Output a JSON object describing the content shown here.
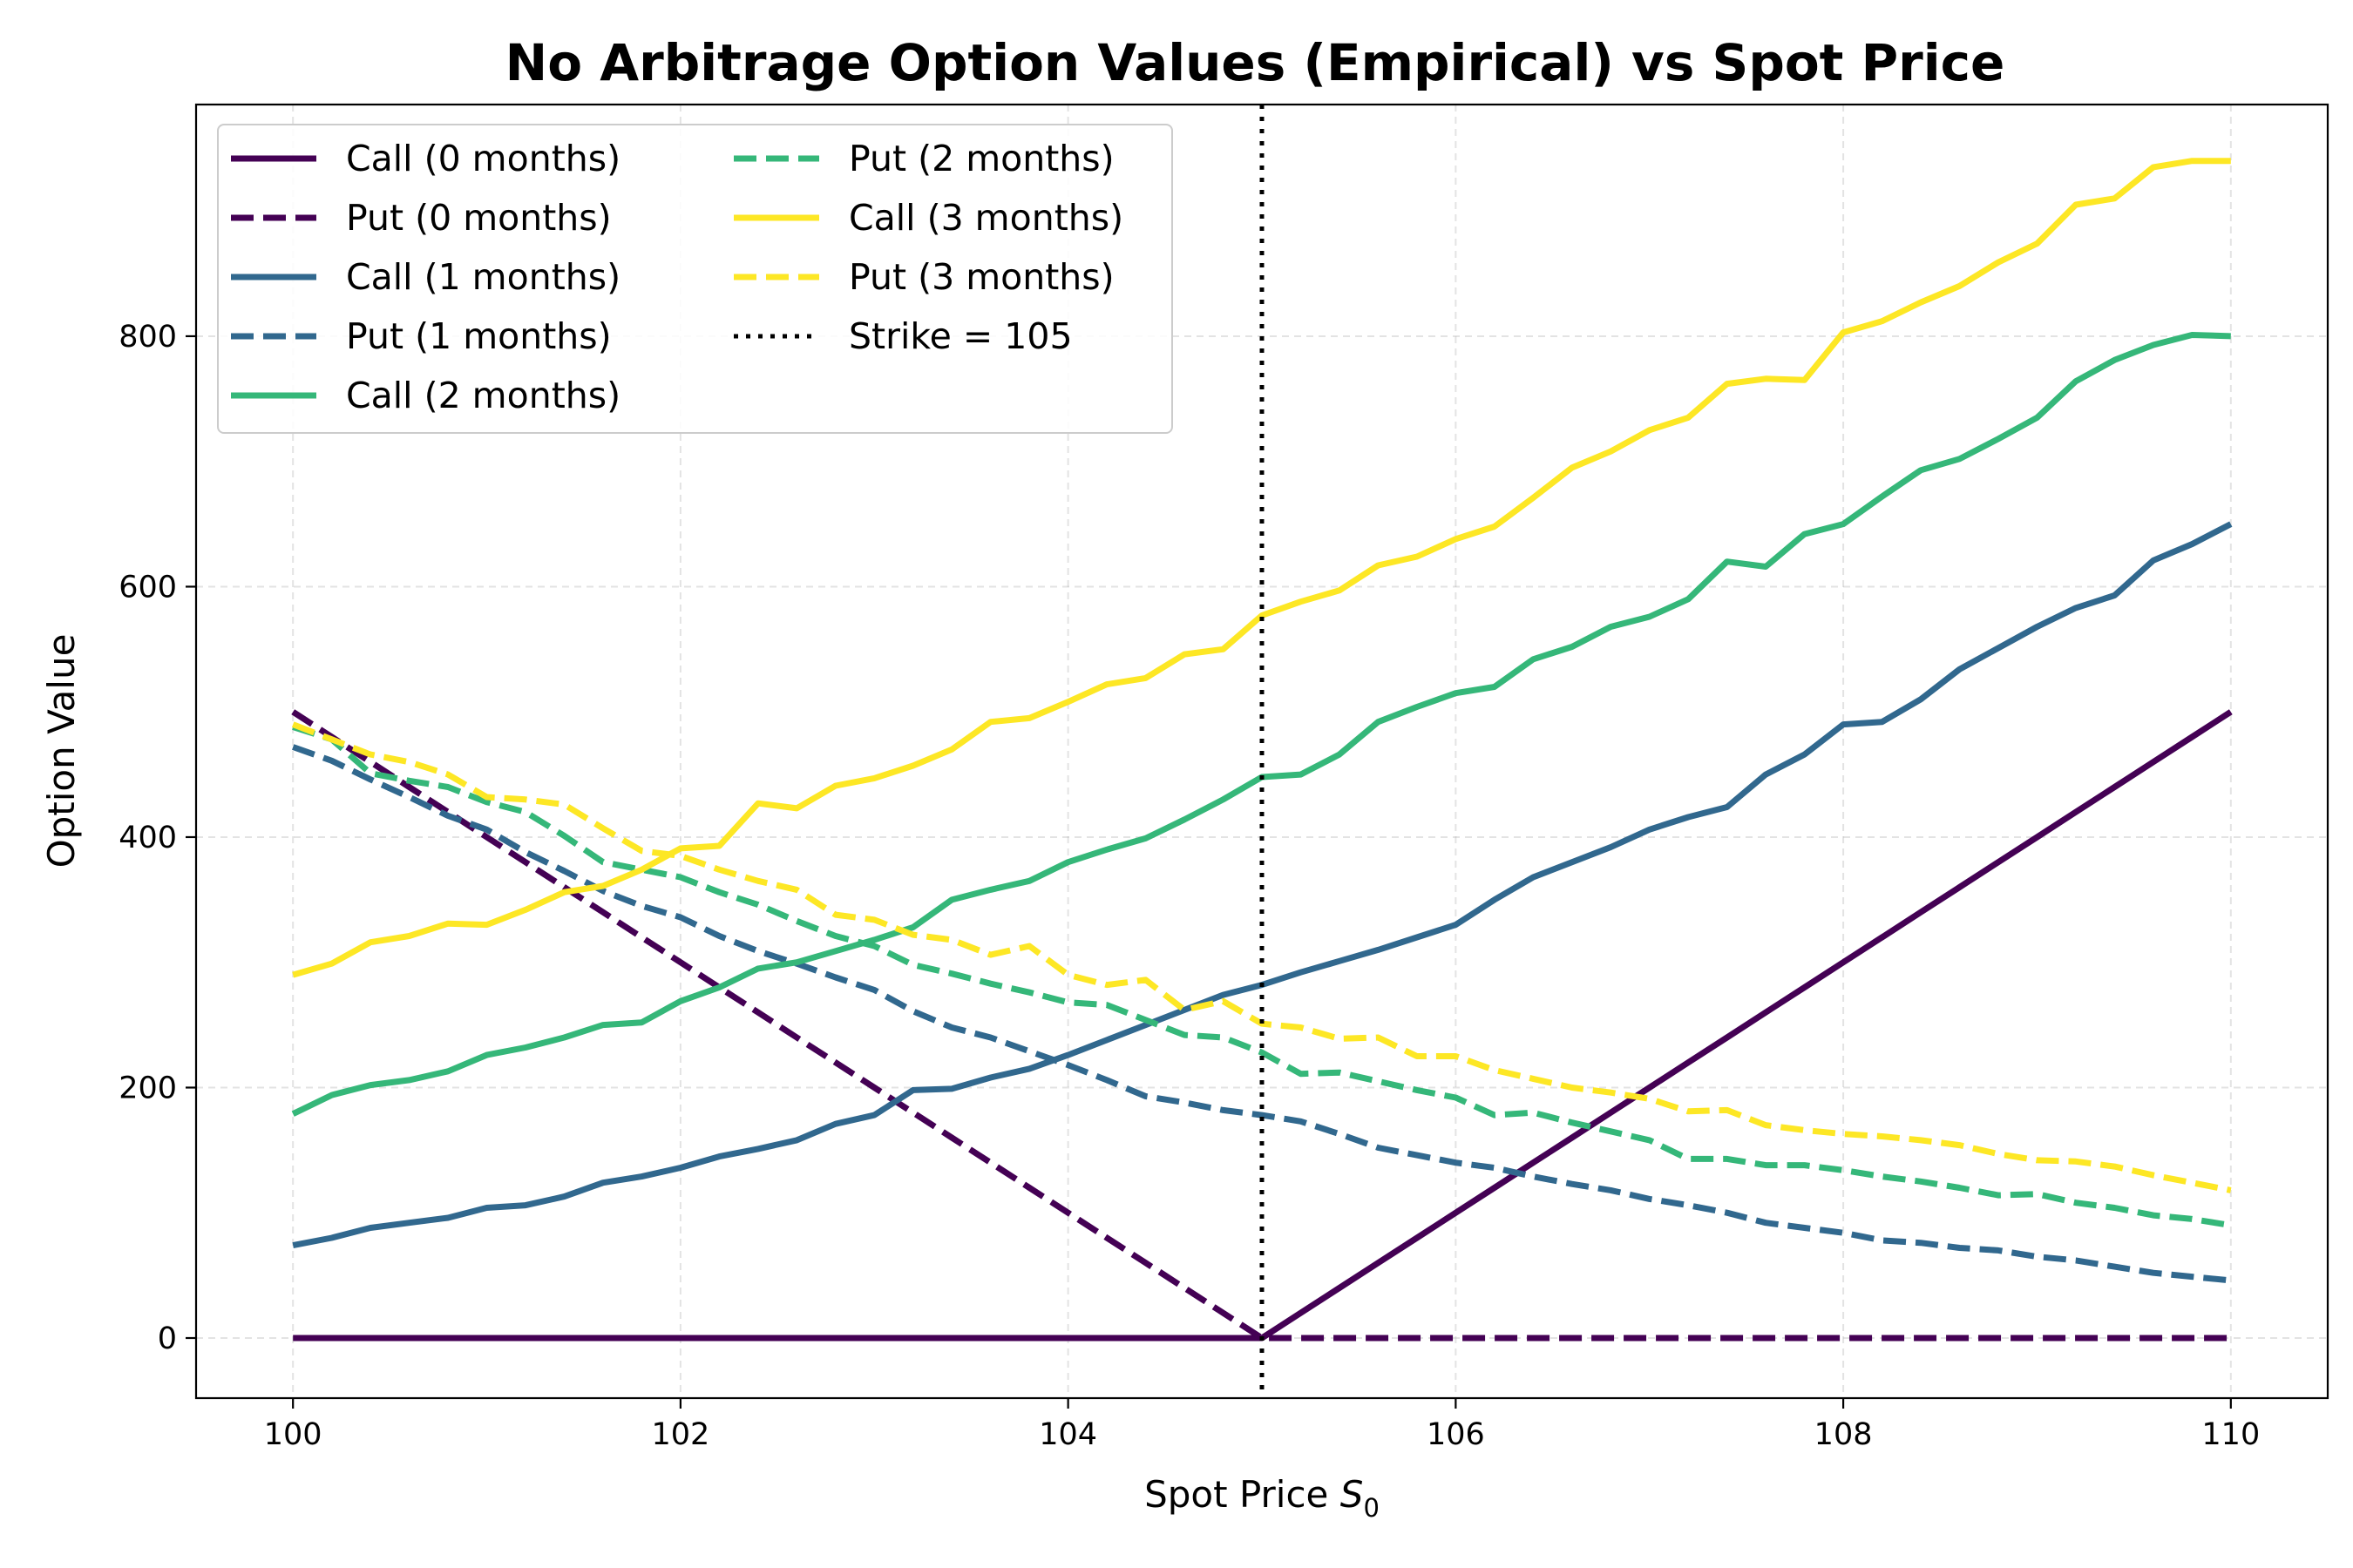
{
  "chart_data": {
    "type": "line",
    "title": "No Arbitrage Option Values (Empirical) vs Spot Price",
    "xlabel": "Spot Price",
    "xlabel_symbol": "S",
    "xlabel_subscript": "0",
    "ylabel": "Option Value",
    "xlim": [
      99.5,
      110.5
    ],
    "ylim": [
      -48,
      985
    ],
    "xticks": [
      100,
      102,
      104,
      106,
      108,
      110
    ],
    "yticks": [
      0,
      200,
      400,
      600,
      800
    ],
    "grid": true,
    "legend_position": "upper left",
    "strike": {
      "value": 105,
      "label": "Strike = 105",
      "color": "#000000"
    },
    "x": [
      100.0,
      100.2,
      100.4,
      100.6,
      100.8,
      101.0,
      101.2,
      101.4,
      101.6,
      101.8,
      102.0,
      102.2,
      102.4,
      102.6,
      102.8,
      103.0,
      103.2,
      103.4,
      103.6,
      103.8,
      104.0,
      104.2,
      104.4,
      104.6,
      104.8,
      105.0,
      105.2,
      105.4,
      105.6,
      105.8,
      106.0,
      106.2,
      106.4,
      106.6,
      106.8,
      107.0,
      107.2,
      107.4,
      107.6,
      107.8,
      108.0,
      108.2,
      108.4,
      108.6,
      108.8,
      109.0,
      109.2,
      109.4,
      109.6,
      109.8,
      110.0
    ],
    "series": [
      {
        "name": "Call (0 months)",
        "color": "#440154",
        "dash": "solid",
        "values": [
          0,
          0,
          0,
          0,
          0,
          0,
          0,
          0,
          0,
          0,
          0,
          0,
          0,
          0,
          0,
          0,
          0,
          0,
          0,
          0,
          0,
          0,
          0,
          0,
          0,
          0,
          20,
          40,
          60,
          80,
          100,
          120,
          140,
          160,
          180,
          200,
          220,
          240,
          260,
          280,
          300,
          320,
          340,
          360,
          380,
          400,
          420,
          440,
          460,
          480,
          500
        ]
      },
      {
        "name": "Put (0 months)",
        "color": "#440154",
        "dash": "dashed",
        "values": [
          500,
          480,
          460,
          440,
          420,
          400,
          380,
          360,
          340,
          320,
          300,
          280,
          260,
          240,
          220,
          200,
          180,
          160,
          140,
          120,
          100,
          80,
          60,
          40,
          20,
          0,
          0,
          0,
          0,
          0,
          0,
          0,
          0,
          0,
          0,
          0,
          0,
          0,
          0,
          0,
          0,
          0,
          0,
          0,
          0,
          0,
          0,
          0,
          0,
          0,
          0
        ]
      },
      {
        "name": "Call (1 months)",
        "color": "#31688e",
        "dash": "solid",
        "values": [
          74,
          80,
          88,
          92,
          96,
          104,
          106,
          113,
          124,
          129,
          136,
          145,
          151,
          158,
          171,
          178,
          198,
          199,
          208,
          215,
          226,
          238,
          250,
          262,
          274,
          282,
          292,
          301,
          310,
          320,
          330,
          350,
          368,
          380,
          392,
          406,
          416,
          424,
          450,
          466,
          490,
          492,
          510,
          534,
          551,
          568,
          583,
          593,
          621,
          634,
          650
        ]
      },
      {
        "name": "Put (1 months)",
        "color": "#31688e",
        "dash": "dashed",
        "values": [
          472,
          461,
          446,
          432,
          417,
          406,
          388,
          373,
          357,
          345,
          336,
          321,
          309,
          299,
          288,
          278,
          261,
          248,
          240,
          229,
          218,
          206,
          193,
          188,
          182,
          178,
          173,
          163,
          152,
          146,
          140,
          136,
          129,
          123,
          118,
          111,
          106,
          100,
          92,
          88,
          84,
          78,
          76,
          72,
          70,
          65,
          62,
          57,
          52,
          49,
          46
        ]
      },
      {
        "name": "Call (2 months)",
        "color": "#35b779",
        "dash": "solid",
        "values": [
          179,
          194,
          202,
          206,
          213,
          226,
          232,
          240,
          250,
          252,
          269,
          280,
          295,
          300,
          309,
          318,
          328,
          350,
          358,
          365,
          380,
          390,
          399,
          414,
          430,
          448,
          450,
          466,
          492,
          504,
          515,
          520,
          542,
          552,
          568,
          576,
          590,
          620,
          616,
          642,
          650,
          672,
          693,
          702,
          718,
          735,
          764,
          781,
          793,
          801,
          800
        ]
      },
      {
        "name": "Put (2 months)",
        "color": "#35b779",
        "dash": "dashed",
        "values": [
          488,
          478,
          451,
          445,
          440,
          428,
          420,
          401,
          380,
          374,
          368,
          356,
          346,
          333,
          321,
          313,
          298,
          291,
          283,
          276,
          268,
          266,
          254,
          242,
          240,
          228,
          211,
          212,
          205,
          198,
          192,
          178,
          180,
          172,
          165,
          158,
          143,
          143,
          138,
          138,
          134,
          129,
          125,
          120,
          114,
          115,
          108,
          104,
          98,
          95,
          90
        ]
      },
      {
        "name": "Call (3 months)",
        "color": "#fde725",
        "dash": "solid",
        "values": [
          290,
          299,
          316,
          321,
          331,
          330,
          342,
          356,
          361,
          374,
          391,
          393,
          427,
          423,
          441,
          447,
          457,
          470,
          492,
          495,
          508,
          522,
          527,
          546,
          550,
          577,
          588,
          597,
          617,
          624,
          638,
          648,
          671,
          695,
          708,
          725,
          735,
          762,
          766,
          765,
          803,
          812,
          827,
          840,
          859,
          874,
          905,
          910,
          935,
          940,
          940
        ]
      },
      {
        "name": "Put (3 months)",
        "color": "#fde725",
        "dash": "dashed",
        "values": [
          490,
          478,
          466,
          460,
          450,
          432,
          430,
          426,
          407,
          389,
          385,
          374,
          365,
          358,
          338,
          334,
          322,
          318,
          306,
          313,
          290,
          282,
          286,
          262,
          269,
          251,
          248,
          239,
          240,
          225,
          225,
          214,
          207,
          200,
          196,
          191,
          181,
          182,
          170,
          166,
          163,
          161,
          158,
          154,
          147,
          142,
          141,
          137,
          130,
          124,
          118
        ]
      }
    ]
  }
}
